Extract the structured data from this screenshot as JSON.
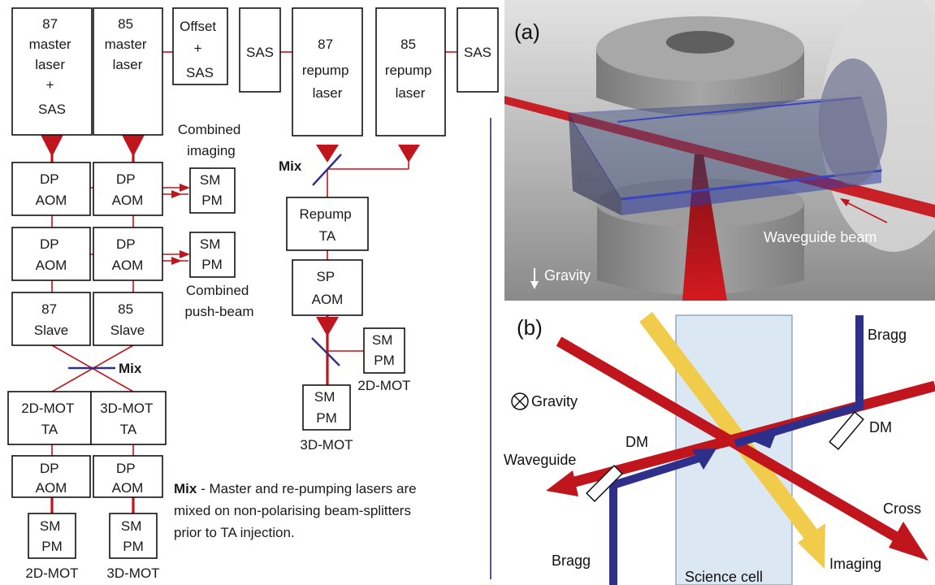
{
  "flow": {
    "m87": [
      "87",
      "master",
      "laser",
      "+",
      "SAS"
    ],
    "m85": [
      "85",
      "master",
      "laser"
    ],
    "offset": [
      "Offset",
      "+",
      "SAS"
    ],
    "sas1": "SAS",
    "r87": [
      "87",
      "repump",
      "laser"
    ],
    "r85": [
      "85",
      "repump",
      "laser"
    ],
    "sas2": "SAS",
    "dp_aom": [
      "DP",
      "AOM"
    ],
    "sp_aom": [
      "SP",
      "AOM"
    ],
    "sm_pm": [
      "SM",
      "PM"
    ],
    "slave87": [
      "87",
      "Slave"
    ],
    "slave85": [
      "85",
      "Slave"
    ],
    "ta2d": [
      "2D-MOT",
      "TA"
    ],
    "ta3d": [
      "3D-MOT",
      "TA"
    ],
    "repump_ta": [
      "Repump",
      "TA"
    ],
    "combined_imaging": [
      "Combined",
      "imaging"
    ],
    "combined_push": [
      "Combined",
      "push-beam"
    ],
    "mix": "Mix",
    "label_2dmot": "2D-MOT",
    "label_3dmot": "3D-MOT",
    "note_bold": "Mix",
    "note_lines": [
      " - Master and re-pumping lasers are",
      "mixed on non-polarising beam-splitters",
      "prior to TA injection."
    ]
  },
  "panel_a": {
    "label": "(a)",
    "gravity": "Gravity",
    "waveguide_beam": "Waveguide beam"
  },
  "panel_b": {
    "label": "(b)",
    "bragg_top": "Bragg",
    "gravity": "Gravity",
    "dm_right": "DM",
    "dm_left": "DM",
    "waveguide": "Waveguide",
    "cross": "Cross",
    "bragg_bottom": "Bragg",
    "science_cell": "Science cell",
    "imaging": "Imaging"
  },
  "colors": {
    "laser_red": "#c0151c",
    "bragg_blue": "#2e2f8a",
    "imaging_yellow": "#f1cc4a",
    "cell_blue": "#dbe8f3",
    "divider": "#2e2f8a"
  }
}
